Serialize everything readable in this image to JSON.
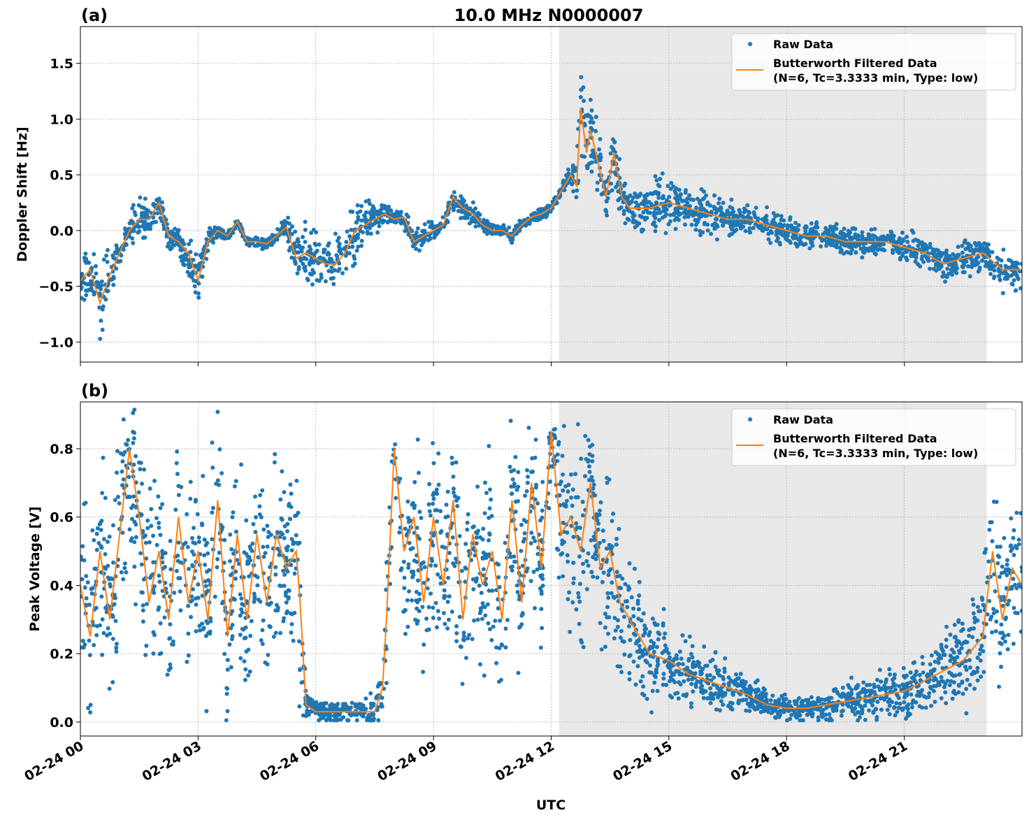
{
  "chart_data": [
    {
      "type": "scatter",
      "panel_label": "(a)",
      "title": "10.0 MHz N0000007",
      "ylabel": "Doppler Shift [Hz]",
      "xlabel": "",
      "xlim_hours_utc": [
        0,
        24
      ],
      "ylim": [
        -1.18,
        1.83
      ],
      "yticks": [
        -1.0,
        -0.5,
        0.0,
        0.5,
        1.0,
        1.5
      ],
      "ytick_labels": [
        "−1.0",
        "−0.5",
        "0.0",
        "0.5",
        "1.0",
        "1.5"
      ],
      "grid": true,
      "shaded_span_hours_utc": [
        12.2,
        23.1
      ],
      "legend": {
        "placement": "upper right",
        "entries": [
          "Raw Data",
          "Butterworth Filtered Data",
          "(N=6, Tc=3.3333 min, Type: low)"
        ]
      },
      "series": [
        {
          "name": "Butterworth Filtered Data",
          "kind": "line",
          "color": "#ff7f0e",
          "x": [
            0,
            0.25,
            0.5,
            0.75,
            1,
            1.25,
            1.5,
            1.75,
            2,
            2.25,
            2.5,
            2.75,
            3,
            3.25,
            3.5,
            3.75,
            4,
            4.25,
            4.5,
            4.75,
            5,
            5.25,
            5.5,
            5.75,
            6,
            6.25,
            6.5,
            6.75,
            7,
            7.25,
            7.5,
            7.75,
            8,
            8.25,
            8.5,
            8.75,
            9,
            9.25,
            9.5,
            9.75,
            10,
            10.25,
            10.5,
            10.75,
            11,
            11.25,
            11.5,
            11.75,
            12,
            12.25,
            12.5,
            12.65,
            12.75,
            12.9,
            13,
            13.2,
            13.4,
            13.6,
            13.8,
            14,
            14.5,
            15,
            15.5,
            16,
            16.5,
            17,
            17.5,
            18,
            18.5,
            19,
            19.5,
            20,
            20.5,
            21,
            21.5,
            22,
            22.5,
            23,
            23.5,
            24
          ],
          "y": [
            -0.45,
            -0.35,
            -0.65,
            -0.4,
            -0.2,
            0.0,
            0.1,
            0.1,
            0.25,
            -0.05,
            -0.1,
            -0.2,
            -0.45,
            -0.1,
            0.0,
            -0.05,
            0.08,
            -0.1,
            -0.1,
            -0.12,
            -0.05,
            0.03,
            -0.25,
            -0.2,
            -0.25,
            -0.3,
            -0.3,
            -0.2,
            0.0,
            0.05,
            0.1,
            0.15,
            0.1,
            0.12,
            -0.1,
            -0.05,
            0.0,
            0.05,
            0.3,
            0.2,
            0.15,
            0.05,
            0.0,
            0.0,
            -0.05,
            0.05,
            0.12,
            0.15,
            0.2,
            0.35,
            0.5,
            0.4,
            1.1,
            0.7,
            0.9,
            0.6,
            0.3,
            0.7,
            0.3,
            0.2,
            0.2,
            0.25,
            0.2,
            0.15,
            0.1,
            0.1,
            0.05,
            0.0,
            -0.05,
            -0.05,
            -0.1,
            -0.1,
            -0.1,
            -0.15,
            -0.2,
            -0.3,
            -0.25,
            -0.2,
            -0.35,
            -0.35
          ]
        },
        {
          "name": "Raw Data",
          "kind": "scatter",
          "color": "#1f77b4",
          "spread": [
            0.2,
            0.25,
            0.35,
            0.25,
            0.1,
            0.1,
            0.3,
            0.15,
            0.1,
            0.15,
            0.15,
            0.2,
            0.25,
            0.1,
            0.06,
            0.05,
            0.05,
            0.05,
            0.05,
            0.05,
            0.05,
            0.1,
            0.25,
            0.3,
            0.3,
            0.3,
            0.3,
            0.25,
            0.3,
            0.2,
            0.15,
            0.1,
            0.08,
            0.1,
            0.1,
            0.1,
            0.08,
            0.08,
            0.12,
            0.1,
            0.1,
            0.08,
            0.06,
            0.06,
            0.06,
            0.06,
            0.05,
            0.05,
            0.05,
            0.05,
            0.1,
            0.3,
            0.5,
            0.4,
            0.4,
            0.3,
            0.2,
            0.3,
            0.2,
            0.2,
            0.22,
            0.25,
            0.2,
            0.2,
            0.18,
            0.15,
            0.15,
            0.15,
            0.13,
            0.13,
            0.13,
            0.13,
            0.13,
            0.15,
            0.15,
            0.15,
            0.15,
            0.15,
            0.18,
            0.2
          ]
        }
      ]
    },
    {
      "type": "scatter",
      "panel_label": "(b)",
      "ylabel": "Peak Voltage [V]",
      "xlabel": "UTC",
      "xlim_hours_utc": [
        0,
        24
      ],
      "xticks_hours": [
        0,
        3,
        6,
        9,
        12,
        15,
        18,
        21
      ],
      "xtick_labels": [
        "02-24 00",
        "02-24 03",
        "02-24 06",
        "02-24 09",
        "02-24 12",
        "02-24 15",
        "02-24 18",
        "02-24 21"
      ],
      "ylim": [
        -0.041,
        0.937
      ],
      "yticks": [
        0.0,
        0.2,
        0.4,
        0.6,
        0.8
      ],
      "ytick_labels": [
        "0.0",
        "0.2",
        "0.4",
        "0.6",
        "0.8"
      ],
      "grid": true,
      "shaded_span_hours_utc": [
        12.2,
        23.1
      ],
      "legend": {
        "placement": "upper right",
        "entries": [
          "Raw Data",
          "Butterworth Filtered Data",
          "(N=6, Tc=3.3333 min, Type: low)"
        ]
      },
      "series": [
        {
          "name": "Butterworth Filtered Data",
          "kind": "line",
          "color": "#ff7f0e",
          "x": [
            0,
            0.25,
            0.5,
            0.75,
            1,
            1.25,
            1.5,
            1.75,
            2,
            2.25,
            2.5,
            2.75,
            3,
            3.25,
            3.5,
            3.75,
            4,
            4.25,
            4.5,
            4.75,
            5,
            5.25,
            5.5,
            5.6,
            5.75,
            6,
            6.5,
            7,
            7.5,
            7.7,
            7.8,
            8,
            8.25,
            8.5,
            8.75,
            9,
            9.25,
            9.5,
            9.75,
            10,
            10.25,
            10.5,
            10.75,
            11,
            11.25,
            11.5,
            11.75,
            12,
            12.25,
            12.5,
            12.75,
            13,
            13.25,
            13.5,
            13.75,
            14,
            14.5,
            15,
            15.5,
            16,
            16.5,
            17,
            17.5,
            18,
            18.5,
            19,
            19.5,
            20,
            20.5,
            21,
            21.5,
            22,
            22.5,
            23,
            23.25,
            23.5,
            23.75,
            24
          ],
          "y": [
            0.4,
            0.25,
            0.5,
            0.3,
            0.55,
            0.8,
            0.6,
            0.35,
            0.5,
            0.3,
            0.6,
            0.35,
            0.5,
            0.3,
            0.65,
            0.25,
            0.55,
            0.3,
            0.55,
            0.35,
            0.55,
            0.45,
            0.5,
            0.35,
            0.05,
            0.03,
            0.03,
            0.03,
            0.03,
            0.1,
            0.3,
            0.8,
            0.5,
            0.6,
            0.35,
            0.6,
            0.4,
            0.65,
            0.3,
            0.55,
            0.4,
            0.5,
            0.3,
            0.65,
            0.35,
            0.7,
            0.45,
            0.85,
            0.55,
            0.6,
            0.5,
            0.7,
            0.45,
            0.5,
            0.35,
            0.3,
            0.2,
            0.18,
            0.14,
            0.12,
            0.1,
            0.08,
            0.05,
            0.04,
            0.04,
            0.05,
            0.06,
            0.07,
            0.08,
            0.09,
            0.12,
            0.15,
            0.18,
            0.25,
            0.5,
            0.3,
            0.45,
            0.4
          ]
        },
        {
          "name": "Raw Data",
          "kind": "scatter",
          "color": "#1f77b4",
          "spread": [
            0.3,
            0.3,
            0.3,
            0.3,
            0.3,
            0.3,
            0.3,
            0.3,
            0.3,
            0.3,
            0.3,
            0.3,
            0.3,
            0.3,
            0.3,
            0.3,
            0.3,
            0.3,
            0.3,
            0.3,
            0.3,
            0.3,
            0.3,
            0.3,
            0.05,
            0.04,
            0.04,
            0.03,
            0.05,
            0.1,
            0.2,
            0.1,
            0.3,
            0.3,
            0.3,
            0.3,
            0.3,
            0.3,
            0.3,
            0.3,
            0.3,
            0.3,
            0.3,
            0.3,
            0.3,
            0.3,
            0.3,
            0.1,
            0.3,
            0.3,
            0.3,
            0.3,
            0.3,
            0.25,
            0.25,
            0.2,
            0.15,
            0.12,
            0.1,
            0.09,
            0.08,
            0.06,
            0.04,
            0.04,
            0.04,
            0.05,
            0.06,
            0.07,
            0.08,
            0.09,
            0.1,
            0.12,
            0.15,
            0.2,
            0.3,
            0.25,
            0.25,
            0.25
          ]
        }
      ]
    }
  ]
}
